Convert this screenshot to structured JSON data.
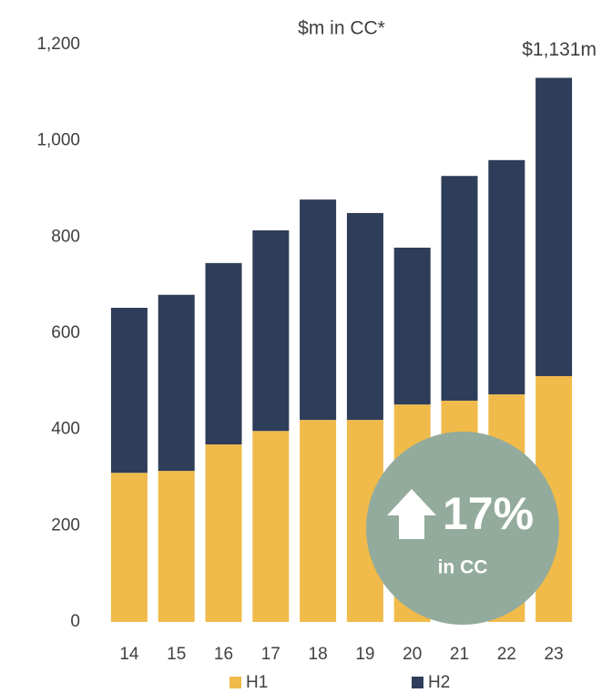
{
  "chart_data": {
    "type": "stacked_bar",
    "title": "$m in CC*",
    "categories": [
      "14",
      "15",
      "16",
      "17",
      "18",
      "19",
      "20",
      "21",
      "22",
      "23"
    ],
    "series": [
      {
        "name": "H1",
        "color": "#f0bb4a",
        "values": [
          310,
          314,
          369,
          397,
          420,
          420,
          452,
          460,
          473,
          511
        ]
      },
      {
        "name": "H2",
        "color": "#2e3d59",
        "values": [
          343,
          366,
          377,
          417,
          458,
          430,
          326,
          467,
          487,
          620
        ]
      }
    ],
    "ylim": [
      0,
      1200
    ],
    "yticks": [
      0,
      200,
      400,
      600,
      800,
      {
        "value": 1000,
        "label": "1,000"
      },
      {
        "value": 1200,
        "label": "1,200"
      }
    ],
    "annotations": [
      "$1,131m"
    ],
    "badge": {
      "value": "17%",
      "caption": "in CC",
      "color": "#93ab9c"
    },
    "legend": "bottom"
  }
}
